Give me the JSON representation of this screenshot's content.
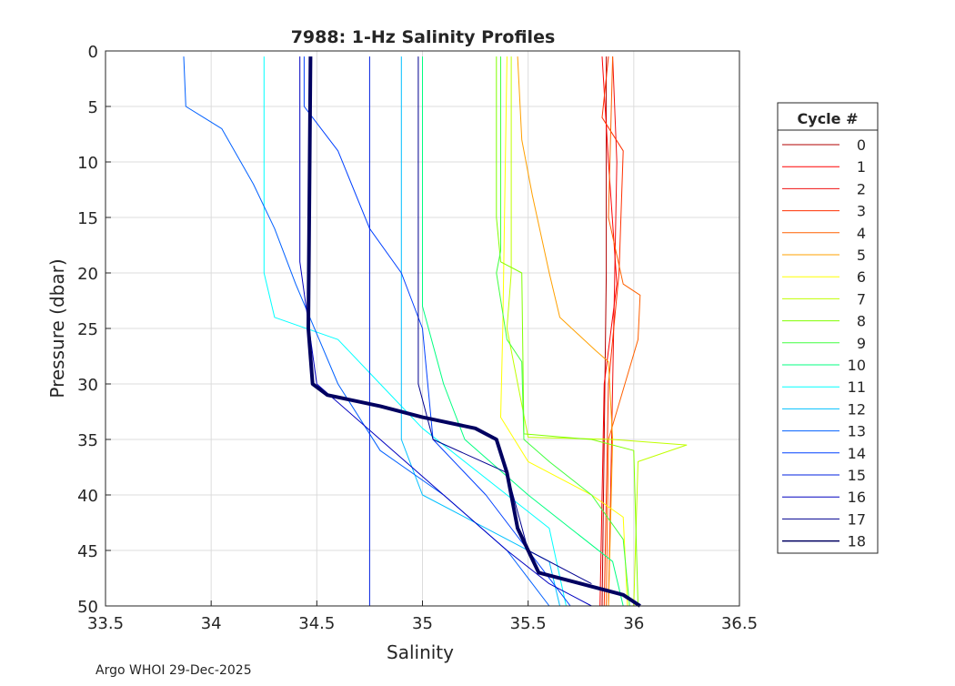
{
  "chart_data": {
    "type": "line",
    "title": "7988: 1-Hz Salinity Profiles",
    "xlabel": "Salinity",
    "ylabel": "Pressure (dbar)",
    "xlim": [
      33.5,
      36.5
    ],
    "ylim": [
      0,
      50
    ],
    "y_reversed": true,
    "grid": true,
    "xticks": [
      "33.5",
      "34",
      "34.5",
      "35",
      "35.5",
      "36",
      "36.5"
    ],
    "yticks": [
      "0",
      "5",
      "10",
      "15",
      "20",
      "25",
      "30",
      "35",
      "40",
      "45",
      "50"
    ],
    "legend": {
      "title": "Cycle #",
      "placement": "outside-right"
    },
    "series": [
      {
        "name": "0",
        "color": "#b00000",
        "points": [
          [
            35.87,
            0.5
          ],
          [
            35.87,
            20
          ],
          [
            35.86,
            35
          ],
          [
            35.85,
            50
          ]
        ]
      },
      {
        "name": "1",
        "color": "#ff0000",
        "points": [
          [
            35.85,
            0.5
          ],
          [
            35.88,
            10
          ],
          [
            35.92,
            21
          ],
          [
            35.86,
            30
          ],
          [
            35.84,
            50
          ]
        ]
      },
      {
        "name": "2",
        "color": "#f01010",
        "points": [
          [
            35.9,
            0.5
          ],
          [
            35.92,
            10
          ],
          [
            35.9,
            30
          ],
          [
            35.88,
            50
          ]
        ]
      },
      {
        "name": "3",
        "color": "#ff3000",
        "points": [
          [
            35.88,
            0.5
          ],
          [
            35.85,
            6
          ],
          [
            35.95,
            9
          ],
          [
            35.93,
            20
          ],
          [
            35.88,
            30
          ],
          [
            35.86,
            50
          ]
        ]
      },
      {
        "name": "4",
        "color": "#ff6000",
        "points": [
          [
            35.9,
            0.5
          ],
          [
            35.88,
            15
          ],
          [
            35.95,
            21
          ],
          [
            36.03,
            22
          ],
          [
            36.02,
            26
          ],
          [
            35.88,
            35
          ],
          [
            35.87,
            50
          ]
        ]
      },
      {
        "name": "5",
        "color": "#ffa000",
        "points": [
          [
            35.45,
            0.5
          ],
          [
            35.47,
            8
          ],
          [
            35.52,
            13
          ],
          [
            35.6,
            20
          ],
          [
            35.65,
            24
          ],
          [
            35.82,
            27
          ],
          [
            35.88,
            28
          ],
          [
            35.9,
            35
          ],
          [
            35.88,
            50
          ]
        ]
      },
      {
        "name": "6",
        "color": "#ffff00",
        "points": [
          [
            35.4,
            0.5
          ],
          [
            35.38,
            25
          ],
          [
            35.37,
            33
          ],
          [
            35.5,
            37
          ],
          [
            35.8,
            40
          ],
          [
            35.95,
            42
          ],
          [
            35.97,
            50
          ]
        ]
      },
      {
        "name": "7",
        "color": "#c0ff00",
        "points": [
          [
            35.42,
            0.5
          ],
          [
            35.42,
            20
          ],
          [
            35.4,
            25
          ],
          [
            35.5,
            34.8
          ],
          [
            35.9,
            35
          ],
          [
            36.25,
            35.5
          ],
          [
            36.02,
            37
          ],
          [
            36.0,
            50
          ]
        ]
      },
      {
        "name": "8",
        "color": "#80ff00",
        "points": [
          [
            35.35,
            0.5
          ],
          [
            35.35,
            15
          ],
          [
            35.37,
            19
          ],
          [
            35.47,
            20
          ],
          [
            35.48,
            34.5
          ],
          [
            35.8,
            35
          ],
          [
            36.0,
            36
          ],
          [
            36.02,
            50
          ]
        ]
      },
      {
        "name": "9",
        "color": "#40ff40",
        "points": [
          [
            35.37,
            0.5
          ],
          [
            35.37,
            18
          ],
          [
            35.35,
            20
          ],
          [
            35.4,
            26
          ],
          [
            35.47,
            28
          ],
          [
            35.48,
            35
          ],
          [
            35.6,
            37
          ],
          [
            35.8,
            40
          ],
          [
            35.95,
            44
          ],
          [
            35.98,
            50
          ]
        ]
      },
      {
        "name": "10",
        "color": "#00ff80",
        "points": [
          [
            35.0,
            0.5
          ],
          [
            35.0,
            23
          ],
          [
            35.1,
            30
          ],
          [
            35.2,
            35
          ],
          [
            35.5,
            40
          ],
          [
            35.7,
            43
          ],
          [
            35.9,
            46
          ],
          [
            35.95,
            50
          ]
        ]
      },
      {
        "name": "11",
        "color": "#00ffff",
        "points": [
          [
            34.25,
            0.5
          ],
          [
            34.25,
            20
          ],
          [
            34.3,
            24
          ],
          [
            34.6,
            26
          ],
          [
            34.8,
            30
          ],
          [
            35.0,
            34
          ],
          [
            35.4,
            40
          ],
          [
            35.6,
            43
          ],
          [
            35.68,
            50
          ]
        ]
      },
      {
        "name": "12",
        "color": "#00c0ff",
        "points": [
          [
            34.9,
            0.5
          ],
          [
            34.9,
            35
          ],
          [
            35.0,
            40
          ],
          [
            35.3,
            43
          ],
          [
            35.6,
            46
          ],
          [
            35.65,
            50
          ]
        ]
      },
      {
        "name": "13",
        "color": "#0060ff",
        "points": [
          [
            33.87,
            0.5
          ],
          [
            33.88,
            5
          ],
          [
            34.05,
            7
          ],
          [
            34.2,
            12
          ],
          [
            34.3,
            16
          ],
          [
            34.4,
            21
          ],
          [
            34.6,
            30
          ],
          [
            34.8,
            36
          ],
          [
            35.1,
            40
          ],
          [
            35.4,
            45
          ],
          [
            35.6,
            50
          ]
        ]
      },
      {
        "name": "14",
        "color": "#0040ff",
        "points": [
          [
            34.44,
            0.5
          ],
          [
            34.44,
            5
          ],
          [
            34.6,
            9
          ],
          [
            34.75,
            16
          ],
          [
            34.9,
            20
          ],
          [
            35.0,
            25
          ],
          [
            35.05,
            35
          ],
          [
            35.3,
            40
          ],
          [
            35.5,
            45
          ],
          [
            35.7,
            50
          ]
        ]
      },
      {
        "name": "15",
        "color": "#0020e0",
        "points": [
          [
            34.75,
            0.5
          ],
          [
            34.75,
            50
          ]
        ]
      },
      {
        "name": "16",
        "color": "#0000c0",
        "points": [
          [
            34.42,
            0.5
          ],
          [
            34.42,
            19
          ],
          [
            34.5,
            30
          ],
          [
            34.8,
            35
          ],
          [
            35.1,
            40
          ],
          [
            35.4,
            45
          ],
          [
            35.6,
            48
          ],
          [
            35.8,
            50
          ]
        ]
      },
      {
        "name": "17",
        "color": "#000090",
        "points": [
          [
            34.98,
            0.5
          ],
          [
            34.98,
            30
          ],
          [
            35.05,
            35
          ],
          [
            35.4,
            38
          ],
          [
            35.5,
            45
          ],
          [
            35.8,
            48
          ]
        ]
      },
      {
        "name": "18",
        "color": "#000060",
        "thick": true,
        "points": [
          [
            34.47,
            0.5
          ],
          [
            34.46,
            25
          ],
          [
            34.48,
            30
          ],
          [
            34.55,
            31
          ],
          [
            34.8,
            32
          ],
          [
            35.0,
            33
          ],
          [
            35.25,
            34
          ],
          [
            35.35,
            35
          ],
          [
            35.4,
            38
          ],
          [
            35.45,
            43
          ],
          [
            35.5,
            45
          ],
          [
            35.55,
            47
          ],
          [
            35.75,
            48
          ],
          [
            35.95,
            49
          ],
          [
            36.03,
            50
          ]
        ]
      }
    ]
  },
  "footer": "Argo WHOI 29-Dec-2025"
}
